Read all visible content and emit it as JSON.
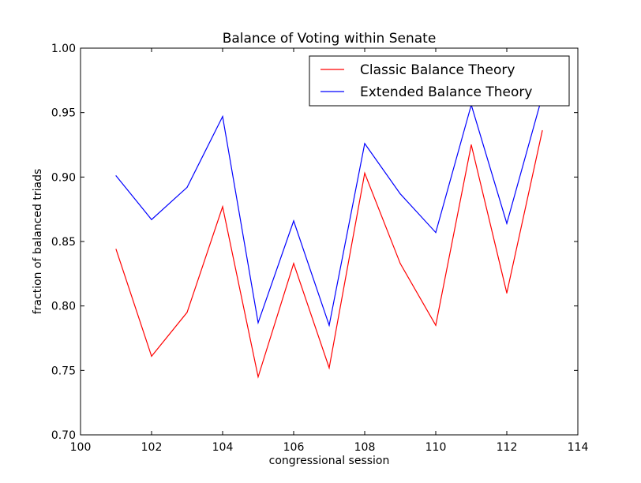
{
  "chart_data": {
    "type": "line",
    "title": "Balance of Voting within Senate",
    "xlabel": "congressional session",
    "ylabel": "fraction of balanced triads",
    "xlim": [
      100,
      114
    ],
    "ylim": [
      0.7,
      1.0
    ],
    "x_ticks": [
      "100",
      "102",
      "104",
      "106",
      "108",
      "110",
      "112",
      "114"
    ],
    "y_ticks": [
      "0.70",
      "0.75",
      "0.80",
      "0.85",
      "0.90",
      "0.95",
      "1.00"
    ],
    "grid": false,
    "legend_position": "top-right",
    "x": [
      101,
      102,
      103,
      104,
      105,
      106,
      107,
      108,
      109,
      110,
      111,
      112,
      113
    ],
    "series": [
      {
        "name": "Classic Balance Theory",
        "color": "#ff0000",
        "values": [
          0.844,
          0.761,
          0.795,
          0.877,
          0.745,
          0.833,
          0.752,
          0.903,
          0.833,
          0.785,
          0.925,
          0.81,
          0.936
        ]
      },
      {
        "name": "Extended Balance Theory",
        "color": "#0000ff",
        "values": [
          0.901,
          0.867,
          0.892,
          0.947,
          0.787,
          0.866,
          0.785,
          0.926,
          0.887,
          0.857,
          0.956,
          0.864,
          0.963
        ]
      }
    ]
  }
}
